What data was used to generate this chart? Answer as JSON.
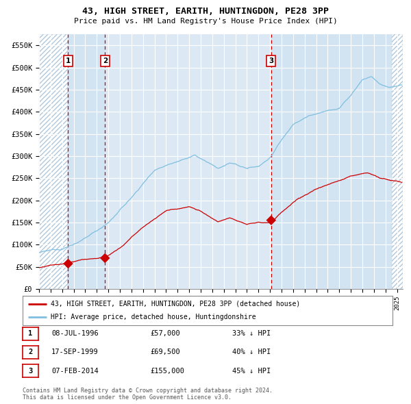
{
  "title": "43, HIGH STREET, EARITH, HUNTINGDON, PE28 3PP",
  "subtitle": "Price paid vs. HM Land Registry's House Price Index (HPI)",
  "bg_color": "#dce9f5",
  "grid_color": "#ffffff",
  "hpi_line_color": "#7fbfdf",
  "price_line_color": "#cc0000",
  "marker_color": "#cc0000",
  "ylim": [
    0,
    575000
  ],
  "yticks": [
    0,
    50000,
    100000,
    150000,
    200000,
    250000,
    300000,
    350000,
    400000,
    450000,
    500000,
    550000
  ],
  "ytick_labels": [
    "£0",
    "£50K",
    "£100K",
    "£150K",
    "£200K",
    "£250K",
    "£300K",
    "£350K",
    "£400K",
    "£450K",
    "£500K",
    "£550K"
  ],
  "xlim_start": 1994.0,
  "xlim_end": 2025.5,
  "sales": [
    {
      "date": 1996.52,
      "price": 57000,
      "label": "1"
    },
    {
      "date": 1999.71,
      "price": 69500,
      "label": "2"
    },
    {
      "date": 2014.1,
      "price": 155000,
      "label": "3"
    }
  ],
  "legend_entries": [
    "43, HIGH STREET, EARITH, HUNTINGDON, PE28 3PP (detached house)",
    "HPI: Average price, detached house, Huntingdonshire"
  ],
  "table_rows": [
    {
      "num": "1",
      "date": "08-JUL-1996",
      "price": "£57,000",
      "pct": "33% ↓ HPI"
    },
    {
      "num": "2",
      "date": "17-SEP-1999",
      "price": "£69,500",
      "pct": "40% ↓ HPI"
    },
    {
      "num": "3",
      "date": "07-FEB-2014",
      "price": "£155,000",
      "pct": "45% ↓ HPI"
    }
  ],
  "footnote": "Contains HM Land Registry data © Crown copyright and database right 2024.\nThis data is licensed under the Open Government Licence v3.0.",
  "left_hatch_end": 1996.52,
  "right_hatch_start": 2024.58,
  "shade1_start": 1996.52,
  "shade1_end": 1999.71,
  "shade2_start": 2014.1,
  "shade2_end": 2024.58
}
